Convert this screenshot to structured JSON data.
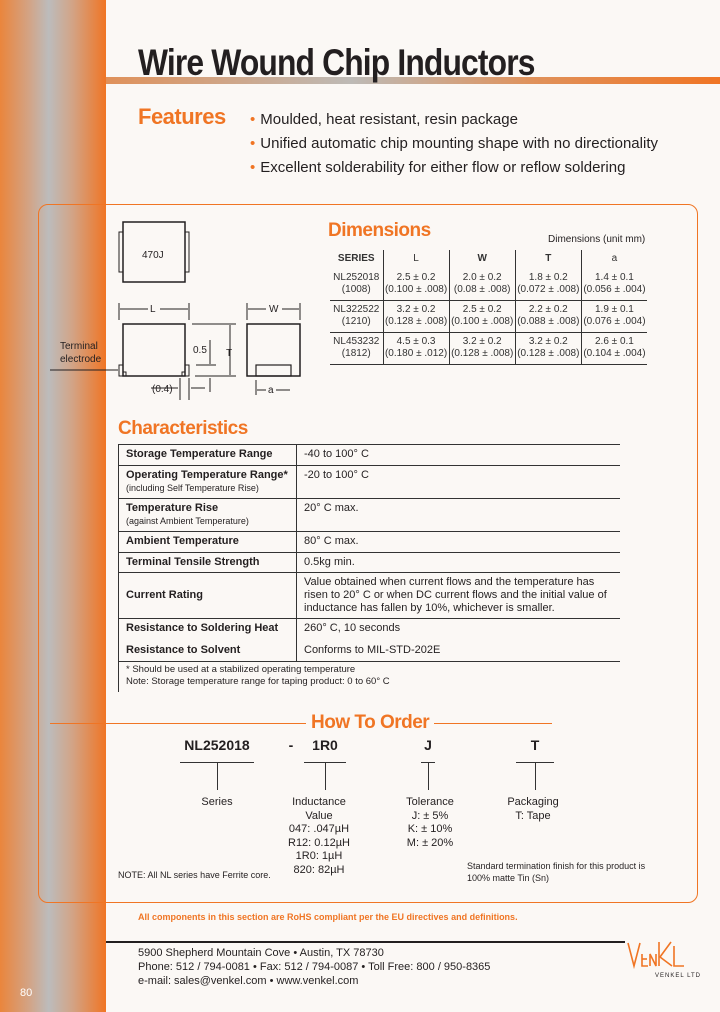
{
  "page_title": "Wire Wound Chip Inductors",
  "page_number": "80",
  "features": {
    "heading": "Features",
    "items": [
      "Moulded, heat resistant, resin package",
      "Unified automatic chip mounting shape with no directionality",
      "Excellent solderability for either flow or reflow soldering"
    ]
  },
  "diagram": {
    "marking": "470J",
    "terminal_label_1": "Terminal",
    "terminal_label_2": "electrode",
    "dim_l": "L",
    "dim_w": "W",
    "dim_t": "T",
    "dim_05": "0.5",
    "dim_04": "(0.4)",
    "dim_a": "a"
  },
  "dimensions": {
    "heading": "Dimensions",
    "unit_note": "Dimensions (unit    mm)",
    "columns": [
      "SERIES",
      "L",
      "W",
      "T",
      "a"
    ],
    "rows": [
      {
        "series": "NL252018",
        "code": "(1008)",
        "L": [
          "2.5 ± 0.2",
          "(0.100 ± .008)"
        ],
        "W": [
          "2.0 ± 0.2",
          "(0.08 ± .008)"
        ],
        "T": [
          "1.8 ± 0.2",
          "(0.072 ± .008)"
        ],
        "a": [
          "1.4 ± 0.1",
          "(0.056 ± .004)"
        ]
      },
      {
        "series": "NL322522",
        "code": "(1210)",
        "L": [
          "3.2 ± 0.2",
          "(0.128 ± .008)"
        ],
        "W": [
          "2.5 ± 0.2",
          "(0.100 ± .008)"
        ],
        "T": [
          "2.2 ± 0.2",
          "(0.088 ± .008)"
        ],
        "a": [
          "1.9 ± 0.1",
          "(0.076 ± .004)"
        ]
      },
      {
        "series": "NL453232",
        "code": "(1812)",
        "L": [
          "4.5 ± 0.3",
          "(0.180 ± .012)"
        ],
        "W": [
          "3.2 ± 0.2",
          "(0.128 ± .008)"
        ],
        "T": [
          "3.2 ± 0.2",
          "(0.128 ± .008)"
        ],
        "a": [
          "2.6 ± 0.1",
          "(0.104 ± .004)"
        ]
      }
    ]
  },
  "characteristics": {
    "heading": "Characteristics",
    "rows": [
      {
        "label": "Storage Temperature Range",
        "sub": "",
        "value": "-40 to 100° C"
      },
      {
        "label": "Operating Temperature Range*",
        "sub": "(including Self Temperature Rise)",
        "value": "-20 to 100° C"
      },
      {
        "label": "Temperature Rise",
        "sub": "(against Ambient Temperature)",
        "value": "20° C max."
      },
      {
        "label": "Ambient Temperature",
        "sub": "",
        "value": "80° C max."
      },
      {
        "label": "Terminal Tensile Strength",
        "sub": "",
        "value": "0.5kg min."
      },
      {
        "label": "Current Rating",
        "sub": "",
        "value": "Value obtained when current flows and the temperature has risen to 20° C or when DC current flows and the initial value of inductance has fallen by 10%, whichever is smaller."
      },
      {
        "label": "Resistance to Soldering Heat",
        "sub": "",
        "value": "260° C, 10 seconds"
      },
      {
        "label": "Resistance to Solvent",
        "sub": "",
        "value": "Conforms to MIL-STD-202E"
      }
    ],
    "note1": "* Should be used at a stabilized operating temperature",
    "note2": "Note: Storage temperature range for taping product: 0 to 60° C"
  },
  "order": {
    "heading": "How To Order",
    "codes": {
      "series": "NL252018",
      "dash": "-",
      "inductance": "1R0",
      "tolerance": "J",
      "packaging": "T"
    },
    "series_label": "Series",
    "inductance_label": [
      "Inductance",
      "Value"
    ],
    "inductance_values": [
      "047: .047µH",
      "R12: 0.12µH",
      "1R0: 1µH",
      "820: 82µH"
    ],
    "tolerance_label": "Tolerance",
    "tolerance_values": [
      "J: ± 5%",
      "K: ± 10%",
      "M: ± 20%"
    ],
    "packaging_label": "Packaging",
    "packaging_values": [
      "T: Tape"
    ],
    "note": "NOTE: All NL series have Ferrite core.",
    "finish_note": [
      "Standard termination finish for this product is",
      "100% matte Tin (Sn)"
    ]
  },
  "rohs": "All components in this section are RoHS compliant per the EU directives and definitions.",
  "footer": {
    "address": "5900 Shepherd Mountain Cove  •  Austin, TX 78730",
    "phone": "Phone: 512 / 794-0081 • Fax: 512 / 794-0087  •  Toll Free: 800 / 950-8365",
    "web": "e-mail: sales@venkel.com  •  www.venkel.com",
    "logo_text": "VENKEL LTD"
  },
  "colors": {
    "accent": "#f07524",
    "text": "#231f20",
    "background": "#fbf8f5"
  }
}
